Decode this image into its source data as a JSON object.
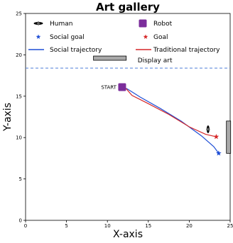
{
  "chart_data": {
    "type": "line",
    "title": "Art gallery",
    "xlabel": "X-axis",
    "ylabel": "Y-axis",
    "xlim": [
      0,
      25
    ],
    "ylim": [
      0,
      25
    ],
    "xticks": [
      "0",
      "5",
      "10",
      "15",
      "20",
      "25"
    ],
    "yticks": [
      "0",
      "5",
      "10",
      "15",
      "20",
      "25"
    ],
    "grid": false,
    "legend": {
      "placement": "top",
      "entries": [
        {
          "label": "Human",
          "marker": "human-icon",
          "color": "#000000"
        },
        {
          "label": "Robot",
          "marker": "square",
          "color": "#7b2d9b"
        },
        {
          "label": "Social goal",
          "marker": "star",
          "color": "#1f4fd6"
        },
        {
          "label": "Goal",
          "marker": "star",
          "color": "#d62728"
        },
        {
          "label": "Social trajectory",
          "marker": "line",
          "color": "#1f4fd6"
        },
        {
          "label": "Traditional trajectory",
          "marker": "line",
          "color": "#d62728"
        }
      ]
    },
    "series": [
      {
        "name": "Social trajectory",
        "color": "#1f4fd6",
        "x": [
          11.8,
          12.4,
          14.0,
          16.5,
          19.0,
          21.5,
          23.0,
          23.6
        ],
        "y": [
          16.1,
          15.9,
          14.9,
          13.5,
          12.0,
          10.2,
          8.9,
          8.1
        ]
      },
      {
        "name": "Traditional trajectory",
        "color": "#d62728",
        "x": [
          11.8,
          12.3,
          13.0,
          15.0,
          17.5,
          20.0,
          22.0,
          23.3
        ],
        "y": [
          16.1,
          15.9,
          15.1,
          14.1,
          12.8,
          11.3,
          10.4,
          10.1
        ]
      }
    ],
    "start": {
      "label": "START",
      "x": 11.8,
      "y": 16.1,
      "color": "#7b2d9b"
    },
    "social_goal": {
      "x": 23.6,
      "y": 8.1,
      "color": "#1f4fd6"
    },
    "goal": {
      "x": 23.3,
      "y": 10.1,
      "color": "#d62728"
    },
    "human": {
      "x": 22.3,
      "y": 11.0
    },
    "display_art": {
      "label": "Display art",
      "x": [
        8.3,
        12.3
      ],
      "y": 19.6
    },
    "art_panel_right": {
      "x": 24.8,
      "y": [
        8.1,
        12.0
      ]
    },
    "boundary_line": {
      "y": 18.4,
      "color": "#4f7fd9",
      "style": "dashed"
    }
  }
}
